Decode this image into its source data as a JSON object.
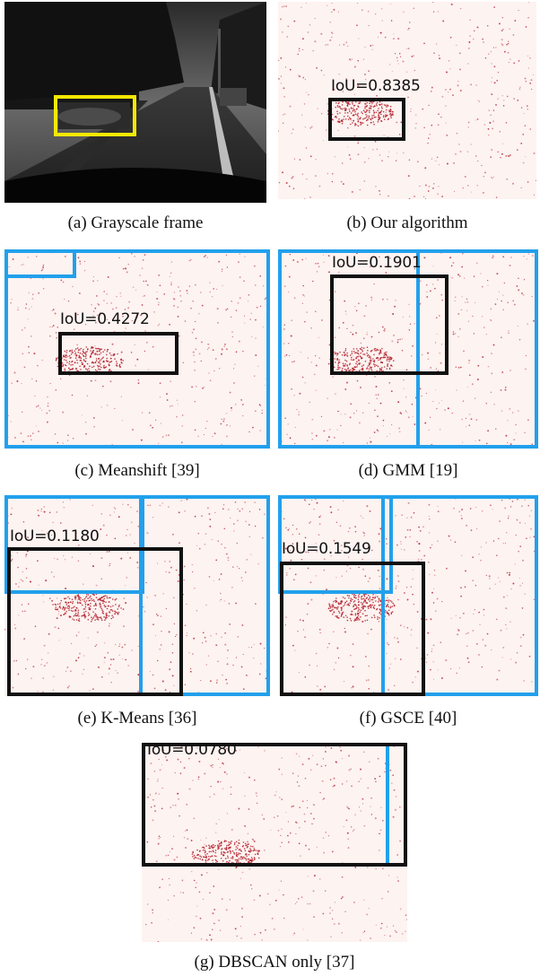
{
  "figure": {
    "colors": {
      "event_bg": "#fdf3f1",
      "event_dot": "#b01d2a",
      "ground_truth_box": "#111111",
      "cluster_box": "#22a0ec",
      "highlight_box": "#f5e800"
    },
    "panels": [
      {
        "id": "a",
        "caption": "(a) Grayscale frame",
        "iou": ""
      },
      {
        "id": "b",
        "caption": "(b) Our algorithm",
        "iou": "IoU=0.8385"
      },
      {
        "id": "c",
        "caption": "(c) Meanshift [39]",
        "iou": "IoU=0.4272"
      },
      {
        "id": "d",
        "caption": "(d) GMM [19]",
        "iou": "IoU=0.1901"
      },
      {
        "id": "e",
        "caption": "(e) K-Means [36]",
        "iou": "IoU=0.1180"
      },
      {
        "id": "f",
        "caption": "(f) GSCE [40]",
        "iou": "IoU=0.1549"
      },
      {
        "id": "g",
        "caption": "(g) DBSCAN only [37]",
        "iou": "IoU=0.0780"
      }
    ]
  }
}
